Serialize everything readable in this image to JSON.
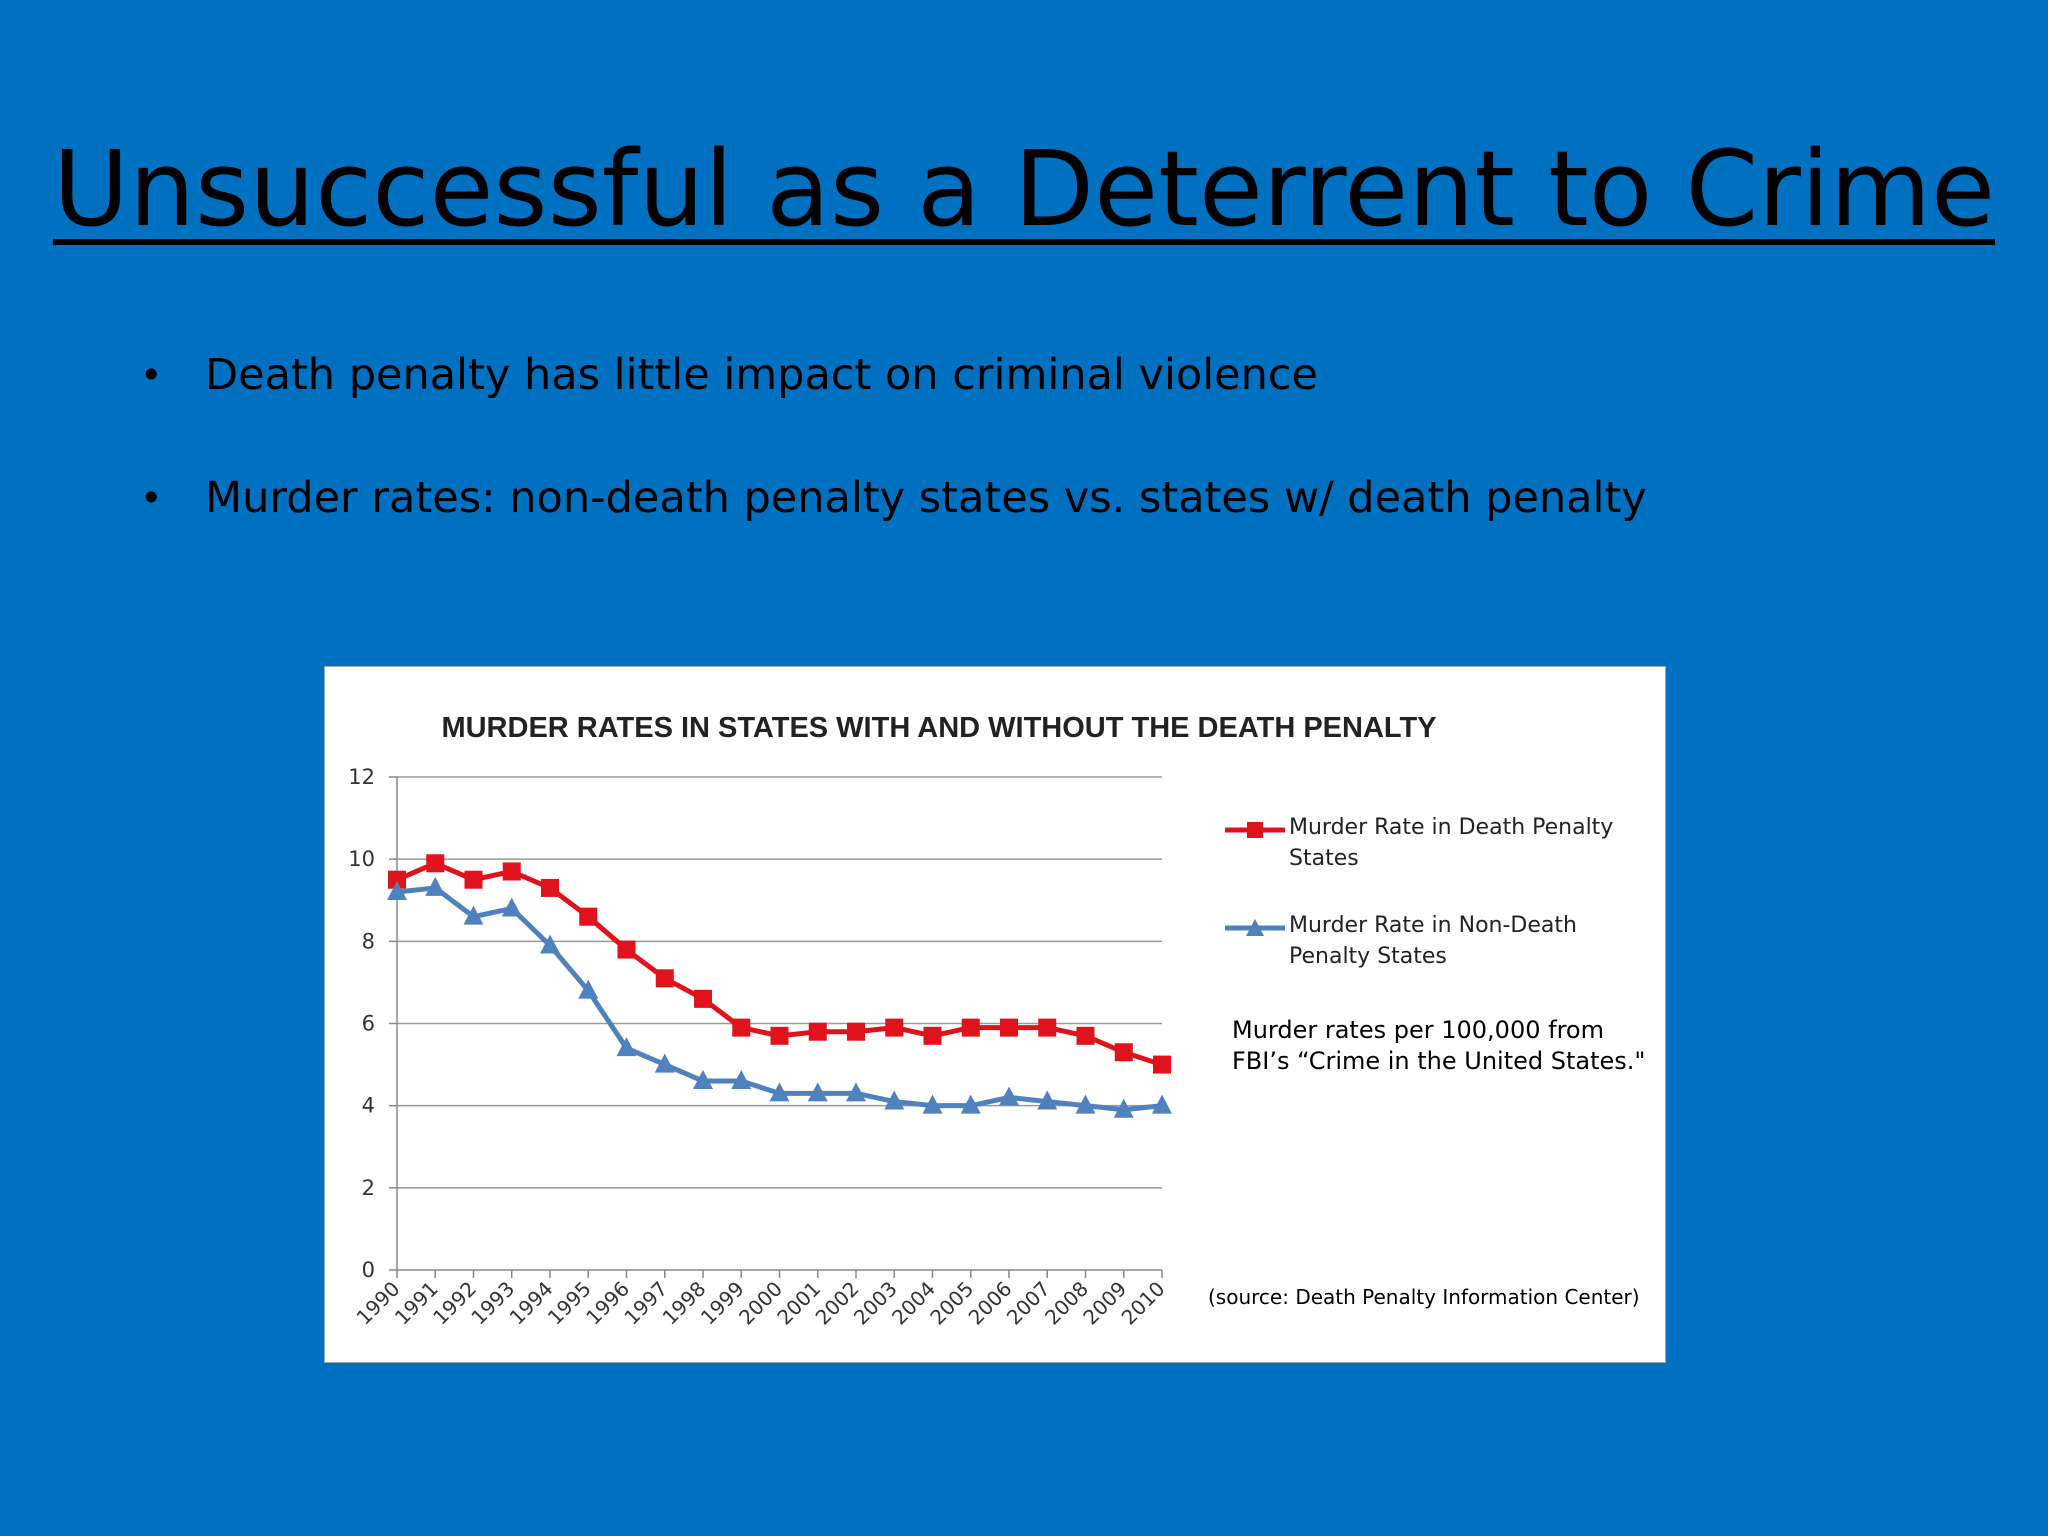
{
  "slide": {
    "title": "Unsuccessful as a Deterrent to Crime",
    "bullets": [
      "Death penalty has little impact on criminal violence",
      "Murder rates: non-death penalty states vs. states w/ death penalty"
    ],
    "bullet_glyph": "•"
  },
  "chart_note": "Murder rates per 100,000 from FBI’s “Crime in the United States.\"",
  "chart_source": "(source: Death Penalty Information Center)",
  "chart_data": {
    "type": "line",
    "title": "MURDER RATES IN STATES WITH AND WITHOUT THE DEATH PENALTY",
    "xlabel": "",
    "ylabel": "",
    "ylim": [
      0,
      12
    ],
    "yticks": [
      "0",
      "2",
      "4",
      "6",
      "8",
      "10",
      "12"
    ],
    "grid": true,
    "legend": "right",
    "x": [
      "1990",
      "1991",
      "1992",
      "1993",
      "1994",
      "1995",
      "1996",
      "1997",
      "1998",
      "1999",
      "2000",
      "2001",
      "2002",
      "2003",
      "2004",
      "2005",
      "2006",
      "2007",
      "2008",
      "2009",
      "2010"
    ],
    "series": [
      {
        "name": "Murder Rate in Death Penalty States",
        "color": "#E0121B",
        "marker": "square",
        "values": [
          9.5,
          9.9,
          9.5,
          9.7,
          9.3,
          8.6,
          7.8,
          7.1,
          6.6,
          5.9,
          5.7,
          5.8,
          5.8,
          5.9,
          5.7,
          5.9,
          5.9,
          5.9,
          5.7,
          5.3,
          5.0
        ]
      },
      {
        "name": "Murder Rate in Non-Death Penalty States",
        "color": "#4F81BD",
        "marker": "triangle",
        "values": [
          9.2,
          9.3,
          8.6,
          8.8,
          7.9,
          6.8,
          5.4,
          5.0,
          4.6,
          4.6,
          4.3,
          4.3,
          4.3,
          4.1,
          4.0,
          4.0,
          4.2,
          4.1,
          4.0,
          3.9,
          4.0
        ]
      }
    ]
  }
}
